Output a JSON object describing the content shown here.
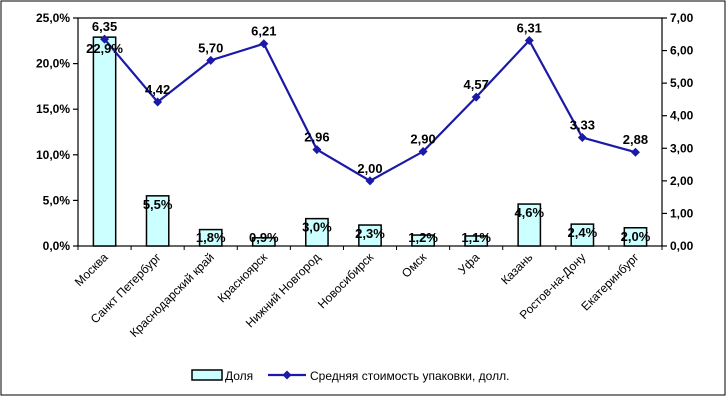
{
  "chart_data": {
    "type": "bar",
    "categories": [
      "Москва",
      "Санкт Петербург",
      "Краснодарский край",
      "Красноярск",
      "Нижний Новгород",
      "Новосибирск",
      "Омск",
      "Уфа",
      "Казань",
      "Ростов-на-Дону",
      "Екатеринбург"
    ],
    "series": [
      {
        "name": "Доля",
        "type": "bar",
        "axis": "left",
        "values": [
          22.9,
          5.5,
          1.8,
          0.9,
          3.0,
          2.3,
          1.2,
          1.1,
          4.6,
          2.4,
          2.0
        ],
        "labels": [
          "22,9%",
          "5,5%",
          "1,8%",
          "0,9%",
          "3,0%",
          "2,3%",
          "1,2%",
          "1,1%",
          "4,6%",
          "2,4%",
          "2,0%"
        ],
        "color": "#ccffff"
      },
      {
        "name": "Средняя стоимость упаковки,  долл.",
        "type": "line",
        "axis": "right",
        "values": [
          6.35,
          4.42,
          5.7,
          6.21,
          2.96,
          2.0,
          2.9,
          4.57,
          6.31,
          3.33,
          2.88
        ],
        "labels": [
          "6,35",
          "4,42",
          "5,70",
          "6,21",
          "2,96",
          "2,00",
          "2,90",
          "4,57",
          "6,31",
          "3,33",
          "2,88"
        ],
        "color": "#1a1aa6"
      }
    ],
    "y_left": {
      "range": [
        0,
        25
      ],
      "step": 5,
      "ticks": [
        "0,0%",
        "5,0%",
        "10,0%",
        "15,0%",
        "20,0%",
        "25,0%"
      ]
    },
    "y_right": {
      "range": [
        0,
        7
      ],
      "step": 1,
      "ticks": [
        "0,00",
        "1,00",
        "2,00",
        "3,00",
        "4,00",
        "5,00",
        "6,00",
        "7,00"
      ]
    },
    "grid": false,
    "legend_position": "bottom",
    "title": "",
    "xlabel": "",
    "ylabel": ""
  }
}
